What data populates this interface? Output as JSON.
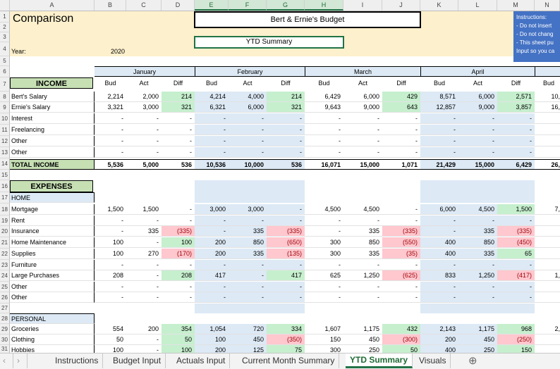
{
  "columns": [
    "A",
    "B",
    "C",
    "D",
    "E",
    "F",
    "G",
    "H",
    "I",
    "J",
    "K",
    "L",
    "M",
    "N"
  ],
  "title": "Comparison",
  "budget_title": "Bert & Ernie's Budget",
  "ytd_label": "YTD Summary",
  "year_label": "Year:",
  "year_value": "2020",
  "instructions": [
    "Instructions:",
    "- Do not insert",
    "- Do not chang",
    "- This sheet pu",
    "Input so you ca"
  ],
  "months": [
    "January",
    "February",
    "March",
    "April"
  ],
  "sub_headers": [
    "Bud",
    "Act",
    "Diff"
  ],
  "partial_bud": "Bud",
  "income_label": "INCOME",
  "expenses_label": "EXPENSES",
  "rows": [
    {
      "n": "8",
      "label": "Bert's Salary",
      "v": [
        "2,214",
        "2,000",
        "214",
        "4,214",
        "4,000",
        "214",
        "6,429",
        "6,000",
        "429",
        "8,571",
        "6,000",
        "2,571",
        "10,"
      ],
      "d": [
        "pos",
        "pos",
        "pos",
        "pos"
      ]
    },
    {
      "n": "9",
      "label": "Ernie's Salary",
      "v": [
        "3,321",
        "3,000",
        "321",
        "6,321",
        "6,000",
        "321",
        "9,643",
        "9,000",
        "643",
        "12,857",
        "9,000",
        "3,857",
        "16,"
      ],
      "d": [
        "pos",
        "pos",
        "pos",
        "pos"
      ]
    },
    {
      "n": "10",
      "label": "Interest",
      "v": [
        "-",
        "-",
        "-",
        "-",
        "-",
        "-",
        "-",
        "-",
        "-",
        "-",
        "-",
        "-",
        ""
      ],
      "d": [
        "",
        "",
        "",
        ""
      ]
    },
    {
      "n": "11",
      "label": "Freelancing",
      "v": [
        "-",
        "-",
        "-",
        "-",
        "-",
        "-",
        "-",
        "-",
        "-",
        "-",
        "-",
        "-",
        ""
      ],
      "d": [
        "",
        "",
        "",
        ""
      ]
    },
    {
      "n": "12",
      "label": "Other",
      "v": [
        "-",
        "-",
        "-",
        "-",
        "-",
        "-",
        "-",
        "-",
        "-",
        "-",
        "-",
        "-",
        ""
      ],
      "d": [
        "",
        "",
        "",
        ""
      ]
    },
    {
      "n": "13",
      "label": "Other",
      "v": [
        "-",
        "-",
        "-",
        "-",
        "-",
        "-",
        "-",
        "-",
        "-",
        "-",
        "-",
        "-",
        ""
      ],
      "d": [
        "",
        "",
        "",
        ""
      ]
    }
  ],
  "total_income": {
    "n": "14",
    "label": "TOTAL INCOME",
    "v": [
      "5,536",
      "5,000",
      "536",
      "10,536",
      "10,000",
      "536",
      "16,071",
      "15,000",
      "1,071",
      "21,429",
      "15,000",
      "6,429",
      "26,"
    ]
  },
  "home_label": "HOME",
  "home_rows": [
    {
      "n": "18",
      "label": "Mortgage",
      "v": [
        "1,500",
        "1,500",
        "-",
        "3,000",
        "3,000",
        "-",
        "4,500",
        "4,500",
        "-",
        "6,000",
        "4,500",
        "1,500",
        "7,"
      ],
      "d": [
        "",
        "",
        "",
        "pos"
      ]
    },
    {
      "n": "19",
      "label": "Rent",
      "v": [
        "-",
        "-",
        "-",
        "-",
        "-",
        "-",
        "-",
        "-",
        "-",
        "-",
        "-",
        "-",
        ""
      ],
      "d": [
        "",
        "",
        "",
        ""
      ]
    },
    {
      "n": "20",
      "label": "Insurance",
      "v": [
        "-",
        "335",
        "(335)",
        "-",
        "335",
        "(335)",
        "-",
        "335",
        "(335)",
        "-",
        "335",
        "(335)",
        ""
      ],
      "d": [
        "neg",
        "neg",
        "neg",
        "neg"
      ]
    },
    {
      "n": "21",
      "label": "Home Maintenance",
      "v": [
        "100",
        "-",
        "100",
        "200",
        "850",
        "(650)",
        "300",
        "850",
        "(550)",
        "400",
        "850",
        "(450)",
        ""
      ],
      "d": [
        "pos",
        "neg",
        "neg",
        "neg"
      ]
    },
    {
      "n": "22",
      "label": "Supplies",
      "v": [
        "100",
        "270",
        "(170)",
        "200",
        "335",
        "(135)",
        "300",
        "335",
        "(35)",
        "400",
        "335",
        "65",
        ""
      ],
      "d": [
        "neg",
        "neg",
        "neg",
        "pos"
      ]
    },
    {
      "n": "23",
      "label": "Furniture",
      "v": [
        "-",
        "-",
        "-",
        "-",
        "-",
        "-",
        "-",
        "-",
        "-",
        "-",
        "-",
        "-",
        ""
      ],
      "d": [
        "",
        "",
        "",
        ""
      ]
    },
    {
      "n": "24",
      "label": "Large Purchases",
      "v": [
        "208",
        "-",
        "208",
        "417",
        "-",
        "417",
        "625",
        "1,250",
        "(625)",
        "833",
        "1,250",
        "(417)",
        "1,"
      ],
      "d": [
        "pos",
        "pos",
        "neg",
        "neg"
      ]
    },
    {
      "n": "25",
      "label": "Other",
      "v": [
        "-",
        "-",
        "-",
        "-",
        "-",
        "-",
        "-",
        "-",
        "-",
        "-",
        "-",
        "-",
        ""
      ],
      "d": [
        "",
        "",
        "",
        ""
      ]
    },
    {
      "n": "26",
      "label": "Other",
      "v": [
        "-",
        "-",
        "-",
        "-",
        "-",
        "-",
        "-",
        "-",
        "-",
        "-",
        "-",
        "-",
        ""
      ],
      "d": [
        "",
        "",
        "",
        ""
      ]
    }
  ],
  "personal_label": "PERSONAL",
  "personal_rows": [
    {
      "n": "29",
      "label": "Groceries",
      "v": [
        "554",
        "200",
        "354",
        "1,054",
        "720",
        "334",
        "1,607",
        "1,175",
        "432",
        "2,143",
        "1,175",
        "968",
        "2,"
      ],
      "d": [
        "pos",
        "pos",
        "pos",
        "pos"
      ]
    },
    {
      "n": "30",
      "label": "Clothing",
      "v": [
        "50",
        "-",
        "50",
        "100",
        "450",
        "(350)",
        "150",
        "450",
        "(300)",
        "200",
        "450",
        "(250)",
        ""
      ],
      "d": [
        "pos",
        "neg",
        "neg",
        "neg"
      ]
    },
    {
      "n": "31",
      "label": "Hobbies",
      "v": [
        "100",
        "-",
        "100",
        "200",
        "125",
        "75",
        "300",
        "250",
        "50",
        "400",
        "250",
        "150",
        ""
      ],
      "d": [
        "pos",
        "pos",
        "pos",
        "pos"
      ]
    }
  ],
  "sheet_tabs": [
    "Instructions",
    "Budget Input",
    "Actuals Input",
    "Current Month Summary",
    "YTD Summary",
    "Visuals"
  ],
  "active_tab": "YTD Summary",
  "colors": {
    "accent": "#217346",
    "month_fill": "#dde9f5",
    "positive": "#c6efce",
    "negative": "#ffc7ce",
    "instructions": "#4472c4",
    "label_green": "#c6e0b4"
  }
}
